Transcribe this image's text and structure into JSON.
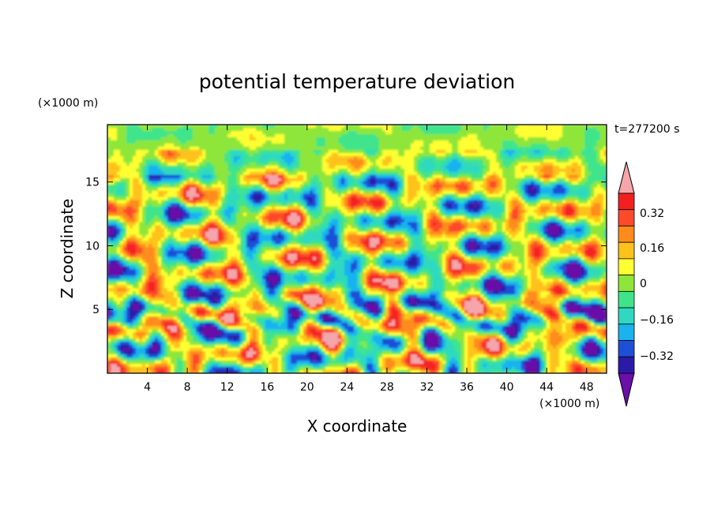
{
  "chart_data": {
    "type": "heatmap",
    "title": "potential temperature deviation",
    "xlabel": "X coordinate",
    "ylabel": "Z coordinate",
    "x_unit": "(×1000 m)",
    "z_unit": "(×1000 m)",
    "time_label": "t=277200 s",
    "xlim": [
      0,
      50
    ],
    "zlim": [
      0,
      19.5
    ],
    "x_ticks": [
      4,
      8,
      12,
      16,
      20,
      24,
      28,
      32,
      36,
      40,
      44,
      48
    ],
    "z_ticks": [
      5,
      10,
      15
    ],
    "colorbar": {
      "levels": [
        -0.48,
        -0.4,
        -0.32,
        -0.24,
        -0.16,
        -0.08,
        0,
        0.08,
        0.16,
        0.24,
        0.32,
        0.4,
        0.48
      ],
      "labeled_values": [
        "0.32",
        "0.16",
        "0",
        "−0.16",
        "−0.32"
      ],
      "colors_low_to_high": [
        "#6a0fa8",
        "#2b1aa8",
        "#1e4fd8",
        "#19b3f0",
        "#2ed9c0",
        "#3fe48a",
        "#8ee63a",
        "#ffff33",
        "#ffc21a",
        "#ff8c1a",
        "#ff4a2a",
        "#f42020",
        "#f5a6aa"
      ]
    }
  }
}
